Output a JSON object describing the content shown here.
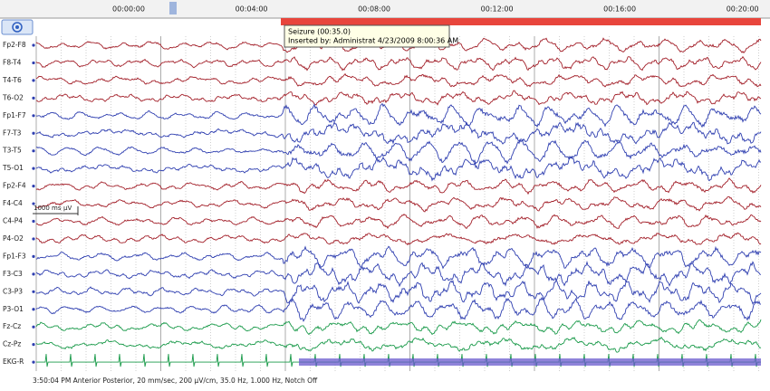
{
  "toolbar": {
    "time_labels": [
      "00:00:00",
      "00:04:00",
      "00:08:00",
      "00:12:00",
      "00:16:00",
      "00:20:00"
    ]
  },
  "tooltip": {
    "title": "Seizure (00:35.0)",
    "inserted_by": "Inserted by: Administrat 4/23/2009 8:00:36 AM"
  },
  "scale_marker": {
    "time": "1000 ms",
    "amplitude": "μV"
  },
  "channels": [
    {
      "label": "Fp2-F8",
      "color": "#a3202a"
    },
    {
      "label": "F8-T4",
      "color": "#a3202a"
    },
    {
      "label": "T4-T6",
      "color": "#a3202a"
    },
    {
      "label": "T6-O2",
      "color": "#a3202a"
    },
    {
      "label": "Fp1-F7",
      "color": "#2f3fb0"
    },
    {
      "label": "F7-T3",
      "color": "#2f3fb0"
    },
    {
      "label": "T3-T5",
      "color": "#2f3fb0"
    },
    {
      "label": "T5-O1",
      "color": "#2f3fb0"
    },
    {
      "label": "Fp2-F4",
      "color": "#a3202a"
    },
    {
      "label": "F4-C4",
      "color": "#a3202a"
    },
    {
      "label": "C4-P4",
      "color": "#a3202a"
    },
    {
      "label": "P4-O2",
      "color": "#a3202a"
    },
    {
      "label": "Fp1-F3",
      "color": "#2f3fb0"
    },
    {
      "label": "F3-C3",
      "color": "#2f3fb0"
    },
    {
      "label": "C3-P3",
      "color": "#2f3fb0"
    },
    {
      "label": "P3-O1",
      "color": "#2f3fb0"
    },
    {
      "label": "Fz-Cz",
      "color": "#1a9a4a"
    },
    {
      "label": "Cz-Pz",
      "color": "#1a9a4a"
    },
    {
      "label": "EKG-R",
      "color": "#1a9a4a"
    }
  ],
  "status_bar": "3:50:04 PM Anterior Posterior, 20 mm/sec, 200 μV/cm, 35.0 Hz, 1.000 Hz, Notch Off"
}
